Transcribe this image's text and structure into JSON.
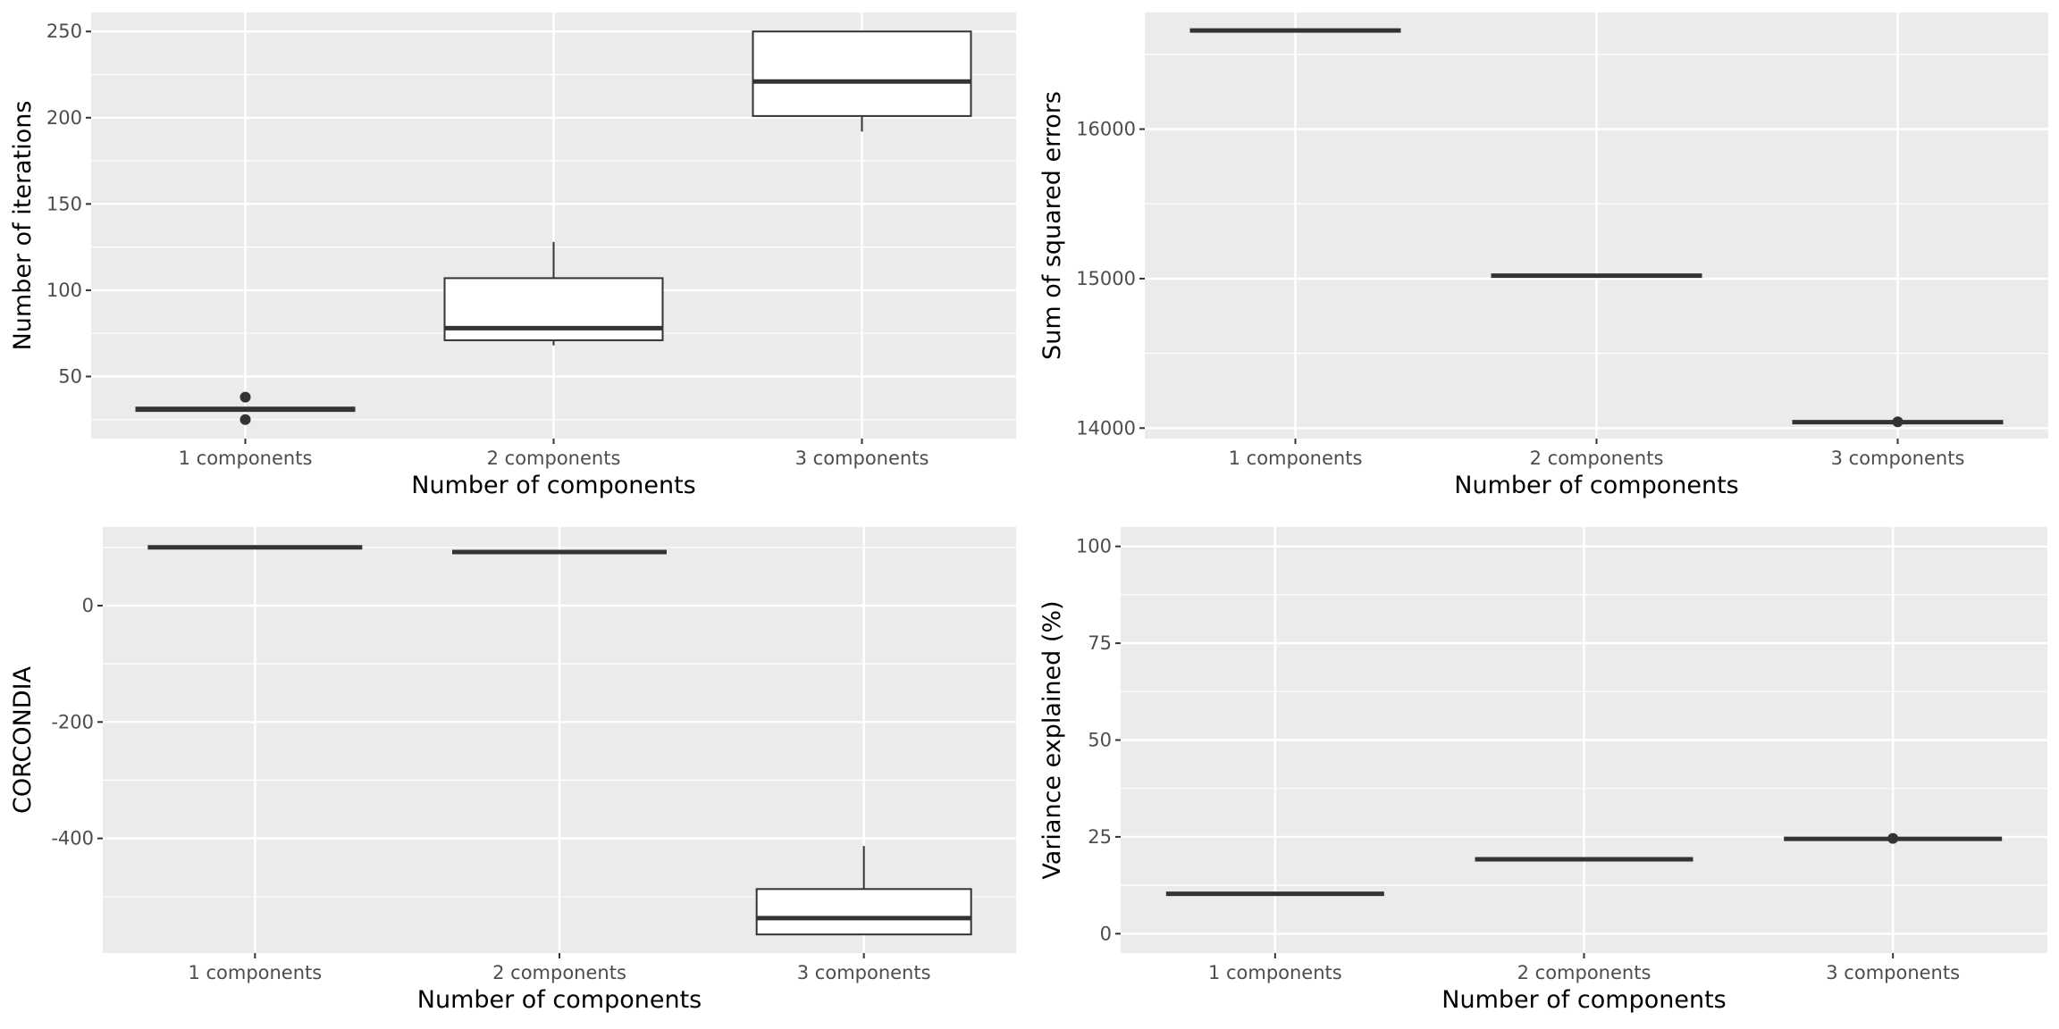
{
  "chart_data": [
    {
      "type": "box",
      "title": "",
      "xlabel": "Number of components",
      "ylabel": "Number of iterations",
      "categories": [
        "1 components",
        "2 components",
        "3 components"
      ],
      "yticks": [
        50,
        100,
        150,
        200,
        250
      ],
      "ylim": [
        14,
        261
      ],
      "boxes": [
        {
          "min": 30,
          "q1": 30,
          "median": 31,
          "q3": 32,
          "max": 32,
          "outliers": [
            25,
            38
          ]
        },
        {
          "min": 68,
          "q1": 71,
          "median": 78,
          "q3": 107,
          "max": 128,
          "outliers": []
        },
        {
          "min": 192,
          "q1": 201,
          "median": 221,
          "q3": 250,
          "max": 250,
          "outliers": []
        }
      ]
    },
    {
      "type": "box",
      "title": "",
      "xlabel": "Number of components",
      "ylabel": "Sum of squared errors",
      "categories": [
        "1 components",
        "2 components",
        "3 components"
      ],
      "yticks": [
        14000,
        15000,
        16000
      ],
      "ylim": [
        13930,
        16780
      ],
      "boxes": [
        {
          "min": 16660,
          "q1": 16660,
          "median": 16660,
          "q3": 16660,
          "max": 16660,
          "outliers": []
        },
        {
          "min": 15020,
          "q1": 15020,
          "median": 15020,
          "q3": 15020,
          "max": 15020,
          "outliers": []
        },
        {
          "min": 14040,
          "q1": 14040,
          "median": 14040,
          "q3": 14040,
          "max": 14040,
          "outliers": [
            14042
          ]
        }
      ]
    },
    {
      "type": "box",
      "title": "",
      "xlabel": "Number of components",
      "ylabel": "CORCONDIA",
      "categories": [
        "1 components",
        "2 components",
        "3 components"
      ],
      "yticks": [
        0,
        -200,
        -400
      ],
      "ylim": [
        -597,
        135
      ],
      "boxes": [
        {
          "min": 100,
          "q1": 100,
          "median": 100,
          "q3": 100,
          "max": 100,
          "outliers": []
        },
        {
          "min": 92,
          "q1": 92,
          "median": 92,
          "q3": 92,
          "max": 92,
          "outliers": []
        },
        {
          "min": -565,
          "q1": -565,
          "median": -537,
          "q3": -487,
          "max": -413,
          "outliers": []
        }
      ]
    },
    {
      "type": "box",
      "title": "",
      "xlabel": "Number of components",
      "ylabel": "Variance explained (%)",
      "categories": [
        "1 components",
        "2 components",
        "3 components"
      ],
      "yticks": [
        0,
        25,
        50,
        75,
        100
      ],
      "ylim": [
        -5,
        105
      ],
      "boxes": [
        {
          "min": 10.3,
          "q1": 10.3,
          "median": 10.3,
          "q3": 10.3,
          "max": 10.3,
          "outliers": []
        },
        {
          "min": 19.2,
          "q1": 19.2,
          "median": 19.2,
          "q3": 19.2,
          "max": 19.2,
          "outliers": []
        },
        {
          "min": 24.5,
          "q1": 24.5,
          "median": 24.5,
          "q3": 24.5,
          "max": 24.5,
          "outliers": [
            24.6
          ]
        }
      ]
    }
  ]
}
